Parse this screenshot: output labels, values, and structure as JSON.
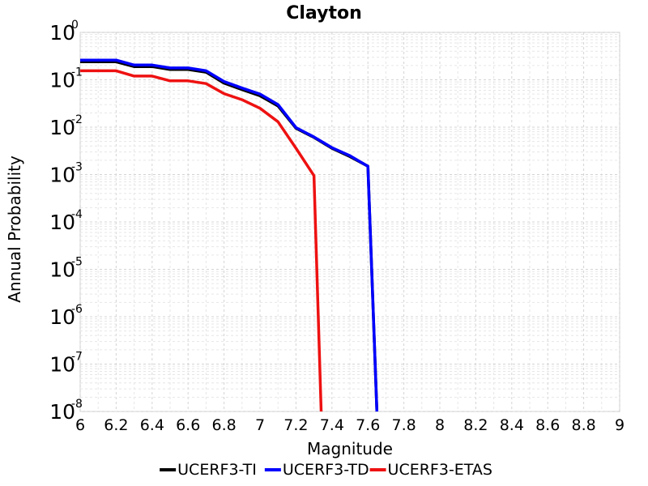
{
  "chart_data": {
    "type": "line",
    "title": "Clayton",
    "xlabel": "Magnitude",
    "ylabel": "Annual Probability",
    "xlim": [
      6,
      9
    ],
    "ylim": [
      1e-08,
      1
    ],
    "yscale": "log",
    "grid": true,
    "legend_position": "bottom",
    "x_ticks": [
      "6",
      "6.2",
      "6.4",
      "6.6",
      "6.8",
      "7",
      "7.2",
      "7.4",
      "7.6",
      "7.8",
      "8",
      "8.2",
      "8.4",
      "8.6",
      "8.8",
      "9"
    ],
    "y_ticks": [
      {
        "base": "10",
        "exp": "0",
        "value": 1
      },
      {
        "base": "10",
        "exp": "-1",
        "value": 0.1
      },
      {
        "base": "10",
        "exp": "-2",
        "value": 0.01
      },
      {
        "base": "10",
        "exp": "-3",
        "value": 0.001
      },
      {
        "base": "10",
        "exp": "-4",
        "value": 0.0001
      },
      {
        "base": "10",
        "exp": "-5",
        "value": 1e-05
      },
      {
        "base": "10",
        "exp": "-6",
        "value": 1e-06
      },
      {
        "base": "10",
        "exp": "-7",
        "value": 1e-07
      },
      {
        "base": "10",
        "exp": "-8",
        "value": 1e-08
      }
    ],
    "series": [
      {
        "name": "UCERF3-TI",
        "color": "#000000",
        "x": [
          6.0,
          6.1,
          6.2,
          6.3,
          6.4,
          6.5,
          6.6,
          6.7,
          6.8,
          6.9,
          7.0,
          7.1,
          7.2,
          7.3,
          7.4,
          7.5,
          7.6,
          7.65
        ],
        "y": [
          0.24,
          0.24,
          0.24,
          0.19,
          0.19,
          0.165,
          0.165,
          0.145,
          0.085,
          0.062,
          0.046,
          0.028,
          0.0095,
          0.0061,
          0.0036,
          0.0024,
          0.0015,
          1e-08
        ]
      },
      {
        "name": "UCERF3-TD",
        "color": "#0000ff",
        "x": [
          6.0,
          6.1,
          6.2,
          6.3,
          6.4,
          6.5,
          6.6,
          6.7,
          6.8,
          6.9,
          7.0,
          7.1,
          7.2,
          7.3,
          7.4,
          7.5,
          7.6,
          7.65
        ],
        "y": [
          0.26,
          0.26,
          0.26,
          0.205,
          0.205,
          0.178,
          0.178,
          0.155,
          0.092,
          0.067,
          0.05,
          0.03,
          0.0098,
          0.0062,
          0.0037,
          0.0025,
          0.0015,
          1e-08
        ]
      },
      {
        "name": "UCERF3-ETAS",
        "color": "#ee1111",
        "x": [
          6.0,
          6.1,
          6.2,
          6.3,
          6.4,
          6.5,
          6.6,
          6.7,
          6.8,
          6.9,
          7.0,
          7.1,
          7.2,
          7.3,
          7.34
        ],
        "y": [
          0.155,
          0.155,
          0.155,
          0.12,
          0.12,
          0.095,
          0.095,
          0.083,
          0.051,
          0.038,
          0.025,
          0.013,
          0.0036,
          0.00095,
          1e-08
        ]
      }
    ]
  }
}
